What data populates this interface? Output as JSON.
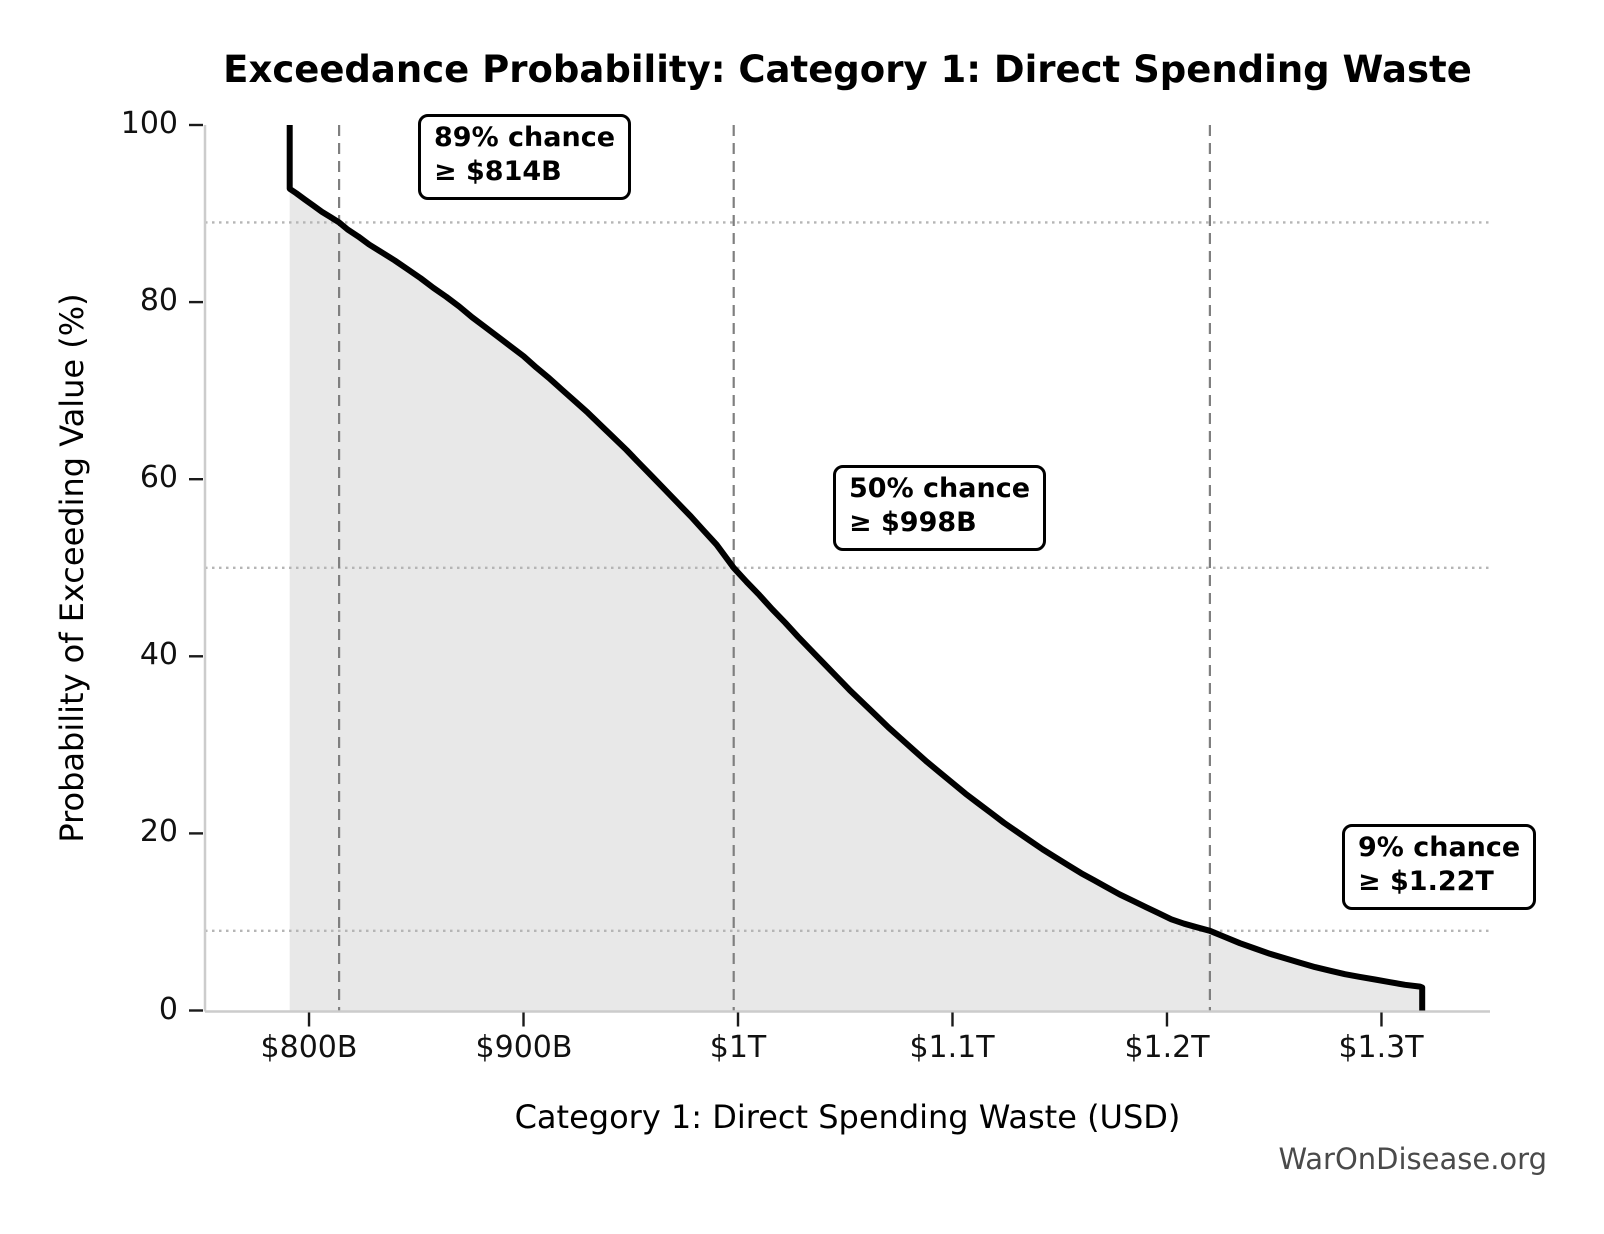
{
  "watermark": "WarOnDisease.org",
  "colors": {
    "curve": "#000000",
    "fill": "#e8e8e8",
    "dashed": "#7f7f7f",
    "dotted": "#b5b5b5",
    "spine": "#cccccc",
    "tick": "#1a1a1a",
    "watermark_text": "#4a4a4a"
  },
  "chart_data": {
    "type": "line",
    "title": "Exceedance Probability: Category 1: Direct Spending Waste",
    "xlabel": "Category 1: Direct Spending Waste (USD)",
    "ylabel": "Probability of Exceeding Value (%)",
    "x_unit": "billions USD",
    "xlim": [
      751.5,
      1350.6
    ],
    "ylim": [
      0,
      100
    ],
    "grid": "reference lines only",
    "legend": "none",
    "x_ticks": [
      {
        "value": 800,
        "label": "$800B"
      },
      {
        "value": 900,
        "label": "$900B"
      },
      {
        "value": 1000,
        "label": "$1T"
      },
      {
        "value": 1100,
        "label": "$1.1T"
      },
      {
        "value": 1200,
        "label": "$1.2T"
      },
      {
        "value": 1300,
        "label": "$1.3T"
      }
    ],
    "y_ticks": [
      {
        "value": 0,
        "label": "0"
      },
      {
        "value": 20,
        "label": "20"
      },
      {
        "value": 40,
        "label": "40"
      },
      {
        "value": 60,
        "label": "60"
      },
      {
        "value": 80,
        "label": "80"
      },
      {
        "value": 100,
        "label": "100"
      }
    ],
    "reference_lines": {
      "vertical_dashed_x": [
        814,
        998,
        1220
      ],
      "horizontal_dotted_y": [
        89,
        50,
        9
      ]
    },
    "annotations": [
      {
        "line1": "89% chance",
        "line2": "≥ $814B",
        "x": 814,
        "y": 89
      },
      {
        "line1": "50% chance",
        "line2": "≥ $998B",
        "x": 998,
        "y": 50
      },
      {
        "line1": "9% chance",
        "line2": "≥ $1.22T",
        "x": 1220,
        "y": 9
      }
    ],
    "series": [
      {
        "name": "exceedance-probability-curve",
        "fill_under": true,
        "points": [
          [
            791,
            100
          ],
          [
            791,
            92.8
          ],
          [
            794,
            92.3
          ],
          [
            798,
            91.6
          ],
          [
            802,
            90.9
          ],
          [
            806,
            90.2
          ],
          [
            810,
            89.6
          ],
          [
            814,
            89
          ],
          [
            818,
            88.2
          ],
          [
            823,
            87.4
          ],
          [
            828,
            86.5
          ],
          [
            834,
            85.6
          ],
          [
            840,
            84.7
          ],
          [
            846,
            83.7
          ],
          [
            852,
            82.7
          ],
          [
            858,
            81.6
          ],
          [
            864,
            80.6
          ],
          [
            870,
            79.5
          ],
          [
            876,
            78.3
          ],
          [
            882,
            77.2
          ],
          [
            888,
            76.1
          ],
          [
            894,
            75
          ],
          [
            900,
            73.9
          ],
          [
            906,
            72.6
          ],
          [
            912,
            71.4
          ],
          [
            918,
            70.1
          ],
          [
            924,
            68.8
          ],
          [
            930,
            67.5
          ],
          [
            936,
            66.1
          ],
          [
            942,
            64.7
          ],
          [
            948,
            63.3
          ],
          [
            954,
            61.8
          ],
          [
            960,
            60.3
          ],
          [
            966,
            58.8
          ],
          [
            972,
            57.3
          ],
          [
            978,
            55.8
          ],
          [
            984,
            54.2
          ],
          [
            990,
            52.6
          ],
          [
            998,
            50
          ],
          [
            1004,
            48.4
          ],
          [
            1010,
            46.9
          ],
          [
            1016,
            45.3
          ],
          [
            1022,
            43.8
          ],
          [
            1028,
            42.2
          ],
          [
            1034,
            40.7
          ],
          [
            1040,
            39.2
          ],
          [
            1046,
            37.7
          ],
          [
            1052,
            36.2
          ],
          [
            1058,
            34.8
          ],
          [
            1064,
            33.4
          ],
          [
            1070,
            32
          ],
          [
            1076,
            30.7
          ],
          [
            1082,
            29.4
          ],
          [
            1088,
            28.1
          ],
          [
            1094,
            26.9
          ],
          [
            1100,
            25.7
          ],
          [
            1106,
            24.5
          ],
          [
            1112,
            23.4
          ],
          [
            1118,
            22.3
          ],
          [
            1124,
            21.2
          ],
          [
            1130,
            20.2
          ],
          [
            1136,
            19.2
          ],
          [
            1142,
            18.2
          ],
          [
            1148,
            17.3
          ],
          [
            1154,
            16.4
          ],
          [
            1160,
            15.5
          ],
          [
            1166,
            14.7
          ],
          [
            1172,
            13.9
          ],
          [
            1178,
            13.1
          ],
          [
            1184,
            12.4
          ],
          [
            1190,
            11.7
          ],
          [
            1196,
            11
          ],
          [
            1202,
            10.3
          ],
          [
            1208,
            9.8
          ],
          [
            1214,
            9.4
          ],
          [
            1220,
            9
          ],
          [
            1227,
            8.3
          ],
          [
            1234,
            7.6
          ],
          [
            1241,
            7
          ],
          [
            1248,
            6.4
          ],
          [
            1255,
            5.9
          ],
          [
            1262,
            5.4
          ],
          [
            1269,
            4.9
          ],
          [
            1276,
            4.5
          ],
          [
            1283,
            4.1
          ],
          [
            1290,
            3.8
          ],
          [
            1297,
            3.5
          ],
          [
            1304,
            3.2
          ],
          [
            1311,
            2.9
          ],
          [
            1318,
            2.7
          ],
          [
            1319,
            2.6
          ],
          [
            1319,
            0
          ]
        ]
      }
    ]
  }
}
